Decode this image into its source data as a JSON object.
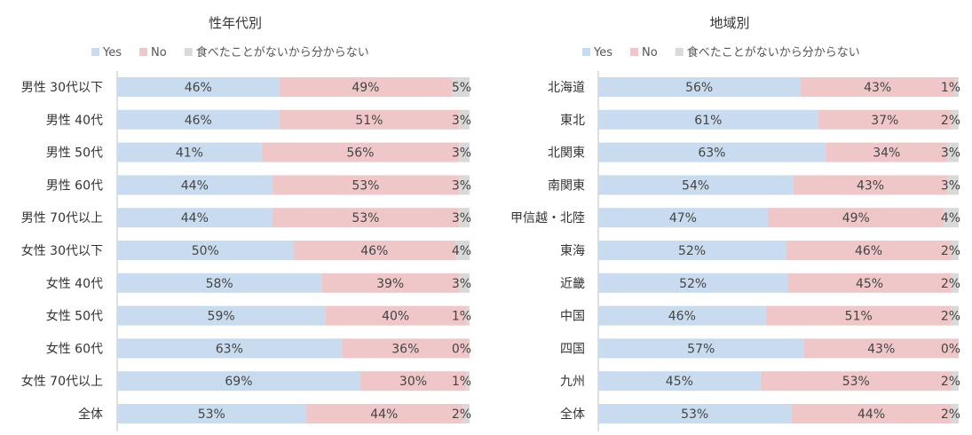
{
  "chart_data": [
    {
      "type": "bar",
      "orientation": "horizontal",
      "stacked": "percent",
      "title": "性年代別",
      "legend": [
        "Yes",
        "No",
        "食べたことがないから分からない"
      ],
      "legend_position": "top",
      "categories": [
        "男性 30代以下",
        "男性 40代",
        "男性 50代",
        "男性 60代",
        "男性 70代以上",
        "女性 30代以下",
        "女性 40代",
        "女性 50代",
        "女性 60代",
        "女性 70代以上",
        "全体"
      ],
      "series": [
        {
          "name": "Yes",
          "values": [
            46,
            46,
            41,
            44,
            44,
            50,
            58,
            59,
            63,
            69,
            53
          ],
          "labels": [
            "46%",
            "46%",
            "41%",
            "44%",
            "44%",
            "50%",
            "58%",
            "59%",
            "63%",
            "69%",
            "53%"
          ]
        },
        {
          "name": "No",
          "values": [
            49,
            51,
            56,
            53,
            53,
            46,
            39,
            40,
            36,
            30,
            44
          ],
          "labels": [
            "49%",
            "51%",
            "56%",
            "53%",
            "53%",
            "46%",
            "39%",
            "40%",
            "36%",
            "30%",
            "44%"
          ]
        },
        {
          "name": "食べたことがないから分からない",
          "values": [
            5,
            3,
            3,
            3,
            3,
            4,
            3,
            1,
            0,
            1,
            2
          ],
          "labels": [
            "5%",
            "3%",
            "3%",
            "3%",
            "3%",
            "4%",
            "3%",
            "1%",
            "0%",
            "1%",
            "2%"
          ]
        }
      ],
      "grid": false
    },
    {
      "type": "bar",
      "orientation": "horizontal",
      "stacked": "percent",
      "title": "地域別",
      "legend": [
        "Yes",
        "No",
        "食べたことがないから分からない"
      ],
      "legend_position": "top",
      "categories": [
        "北海道",
        "東北",
        "北関東",
        "南関東",
        "甲信越・北陸",
        "東海",
        "近畿",
        "中国",
        "四国",
        "九州",
        "全体"
      ],
      "series": [
        {
          "name": "Yes",
          "values": [
            56,
            61,
            63,
            54,
            47,
            52,
            52,
            46,
            57,
            45,
            53
          ],
          "labels": [
            "56%",
            "61%",
            "63%",
            "54%",
            "47%",
            "52%",
            "52%",
            "46%",
            "57%",
            "45%",
            "53%"
          ]
        },
        {
          "name": "No",
          "values": [
            43,
            37,
            34,
            43,
            49,
            46,
            45,
            51,
            43,
            53,
            44
          ],
          "labels": [
            "43%",
            "37%",
            "34%",
            "43%",
            "49%",
            "46%",
            "45%",
            "51%",
            "43%",
            "53%",
            "44%"
          ]
        },
        {
          "name": "食べたことがないから分からない",
          "values": [
            1,
            2,
            3,
            3,
            4,
            2,
            2,
            2,
            0,
            2,
            2
          ],
          "labels": [
            "1%",
            "2%",
            "3%",
            "3%",
            "4%",
            "2%",
            "2%",
            "2%",
            "0%",
            "2%",
            "2%"
          ]
        }
      ],
      "grid": false
    }
  ],
  "colors": {
    "yes": "#c9dcef",
    "no": "#efc7c9",
    "unknown": "#d9d9d9",
    "axis": "#bfbfbf"
  }
}
